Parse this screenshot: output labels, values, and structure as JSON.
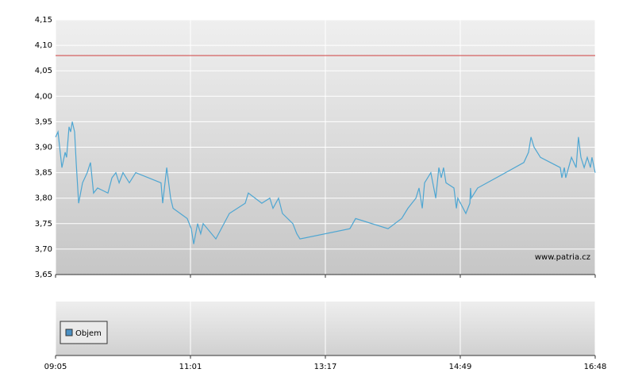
{
  "chart_data": {
    "type": "line",
    "x": [
      0,
      0.018,
      0.047,
      0.071,
      0.082,
      0.1,
      0.112,
      0.124,
      0.141,
      0.153,
      0.171,
      0.2,
      0.235,
      0.259,
      0.282,
      0.312,
      0.388,
      0.418,
      0.447,
      0.471,
      0.5,
      0.547,
      0.594,
      0.782,
      0.794,
      0.824,
      0.853,
      0.871,
      0.976,
      1.006,
      1.024,
      1.053,
      1.076,
      1.094,
      1.188,
      1.288,
      1.406,
      1.429,
      1.529,
      1.588,
      1.612,
      1.653,
      1.682,
      1.759,
      1.788,
      1.812,
      2.182,
      2.224,
      2.465,
      2.565,
      2.612,
      2.671,
      2.694,
      2.718,
      2.735,
      2.782,
      2.818,
      2.841,
      2.859,
      2.876,
      2.894,
      2.953,
      2.971,
      2.982,
      3.041,
      3.071,
      3.076,
      3.082,
      3.129,
      3.335,
      3.471,
      3.506,
      3.524,
      3.547,
      3.594,
      3.741,
      3.753,
      3.771,
      3.782,
      3.824,
      3.859,
      3.876,
      3.894,
      3.918,
      3.941,
      3.965,
      3.976,
      4
    ],
    "series": [
      {
        "color": "#4ea6d2",
        "values": [
          3.92,
          3.93,
          3.86,
          3.89,
          3.88,
          3.94,
          3.93,
          3.95,
          3.93,
          3.87,
          3.79,
          3.83,
          3.85,
          3.87,
          3.81,
          3.82,
          3.81,
          3.84,
          3.85,
          3.83,
          3.85,
          3.83,
          3.85,
          3.83,
          3.79,
          3.86,
          3.8,
          3.78,
          3.76,
          3.74,
          3.71,
          3.75,
          3.73,
          3.75,
          3.72,
          3.77,
          3.79,
          3.81,
          3.79,
          3.8,
          3.78,
          3.8,
          3.77,
          3.75,
          3.73,
          3.72,
          3.74,
          3.76,
          3.74,
          3.76,
          3.78,
          3.8,
          3.82,
          3.78,
          3.83,
          3.85,
          3.8,
          3.86,
          3.84,
          3.86,
          3.83,
          3.82,
          3.78,
          3.8,
          3.77,
          3.79,
          3.82,
          3.8,
          3.82,
          3.85,
          3.87,
          3.89,
          3.92,
          3.9,
          3.88,
          3.86,
          3.84,
          3.86,
          3.84,
          3.88,
          3.86,
          3.92,
          3.88,
          3.86,
          3.88,
          3.86,
          3.88,
          3.85
        ]
      }
    ],
    "reference_line": {
      "value": 4.08,
      "color": "#d04040"
    },
    "xlim": [
      0,
      4
    ],
    "xticks": [
      {
        "value": 0,
        "label": "09:05"
      },
      {
        "value": 1,
        "label": "11:01"
      },
      {
        "value": 2,
        "label": "13:17"
      },
      {
        "value": 3,
        "label": "14:49"
      },
      {
        "value": 4,
        "label": "16:48"
      }
    ],
    "ylim": [
      3.65,
      4.15
    ],
    "yticks": [
      {
        "value": 3.65,
        "label": "3,65"
      },
      {
        "value": 3.7,
        "label": "3,70"
      },
      {
        "value": 3.75,
        "label": "3,75"
      },
      {
        "value": 3.8,
        "label": "3,80"
      },
      {
        "value": 3.85,
        "label": "3,85"
      },
      {
        "value": 3.9,
        "label": "3,90"
      },
      {
        "value": 3.95,
        "label": "3,95"
      },
      {
        "value": 4.0,
        "label": "4,00"
      },
      {
        "value": 4.05,
        "label": "4,05"
      },
      {
        "value": 4.1,
        "label": "4,10"
      },
      {
        "value": 4.15,
        "label": "4,15"
      }
    ],
    "grid": true,
    "watermark": "www.patria.cz",
    "volume_legend": {
      "name": "Objem",
      "color": "#4a90c4"
    }
  }
}
